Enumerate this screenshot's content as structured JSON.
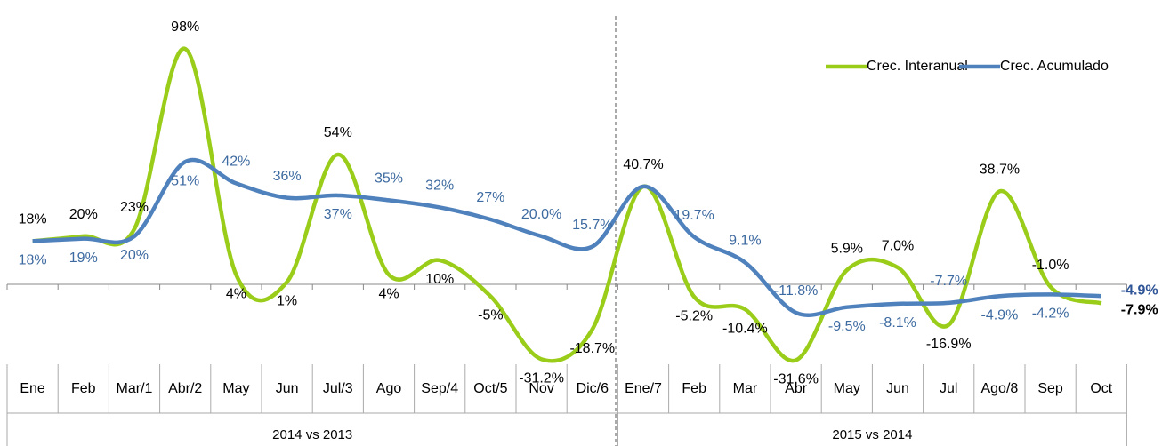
{
  "chart_data": {
    "type": "line",
    "categories": [
      "Ene",
      "Feb",
      "Mar/1",
      "Abr/2",
      "May",
      "Jun",
      "Jul/3",
      "Ago",
      "Sep/4",
      "Oct/5",
      "Nov",
      "Dic/6",
      "Ene/7",
      "Feb",
      "Mar",
      "Abr",
      "May",
      "Jun",
      "Jul",
      "Ago/8",
      "Sep",
      "Oct"
    ],
    "groups": [
      {
        "label": "2014 vs 2013",
        "span": 12
      },
      {
        "label": "2015 vs 2014",
        "span": 10
      }
    ],
    "series": [
      {
        "name": "Crec. Interanual",
        "color": "#9acd1a",
        "values": [
          18,
          20,
          23,
          98,
          4,
          1,
          54,
          4,
          10,
          -5,
          -31.2,
          -18.7,
          40.7,
          -5.2,
          -10.4,
          -31.6,
          5.9,
          7.0,
          -16.9,
          38.7,
          -1.0,
          -7.9
        ],
        "value_labels": [
          "18%",
          "20%",
          "23%",
          "98%",
          "4%",
          "1%",
          "54%",
          "4%",
          "10%",
          "-5%",
          "-31.2%",
          "-18.7%",
          "40.7%",
          "-5.2%",
          "-10.4%",
          "-31.6%",
          "5.9%",
          "7.0%",
          "-16.9%",
          "38.7%",
          "-1.0%",
          "-7.9%"
        ]
      },
      {
        "name": "Crec. Acumulado",
        "color": "#4f81bd",
        "values": [
          18,
          19,
          20,
          51,
          42,
          36,
          37,
          35,
          32,
          27,
          20.0,
          15.7,
          40.7,
          19.7,
          9.1,
          -11.8,
          -9.5,
          -8.1,
          -7.7,
          -4.9,
          -4.2,
          -4.9
        ],
        "value_labels": [
          "18%",
          "19%",
          "20%",
          "51%",
          "42%",
          "36%",
          "37%",
          "35%",
          "32%",
          "27%",
          "20.0%",
          "15.7%",
          null,
          "19.7%",
          "9.1%",
          "-11.8%",
          "-9.5%",
          "-8.1%",
          "-7.7%",
          "-4.9%",
          "-4.2%",
          "-4.9%"
        ]
      }
    ],
    "legend": "top-right"
  }
}
